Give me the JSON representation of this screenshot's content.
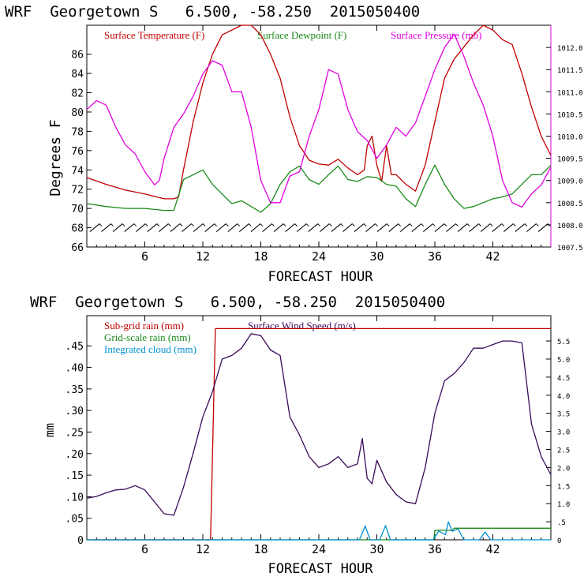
{
  "colors": {
    "temperature": "#c00000",
    "dewpoint": "#1a8a1a",
    "pressure": "#e000e0",
    "subgrid": "#c00000",
    "gridscale": "#1a8a1a",
    "cloud": "#0090d0",
    "wind": "#3a0a5a",
    "barbs": "#000000",
    "frame": "#000000"
  },
  "chart_data": [
    {
      "type": "line",
      "title": "WRF  Georgetown S   6.500, -58.250  2015050400",
      "xlabel": "FORECAST HOUR",
      "ylabel": "Degrees F",
      "xlim": [
        0,
        48
      ],
      "ylim": [
        66,
        89
      ],
      "y2lim": [
        1007.5,
        1012.5
      ],
      "x_ticks": [
        "6",
        "12",
        "18",
        "24",
        "30",
        "36",
        "42"
      ],
      "y_ticks": [
        "66",
        "68",
        "70",
        "72",
        "74",
        "76",
        "78",
        "80",
        "82",
        "84",
        "86"
      ],
      "y2_ticks": [
        "1007.5",
        "1008.0",
        "1008.5",
        "1009.0",
        "1009.5",
        "1010.0",
        "1010.5",
        "1011.0",
        "1011.5",
        "1012.0"
      ],
      "legend": [
        "Surface Temperature (F)",
        "Surface Dewpoint (F)",
        "Surface Pressure (mb)"
      ],
      "series": [
        {
          "name": "Surface Temperature (F)",
          "axis": "left",
          "x": [
            0,
            2,
            4,
            6,
            8,
            9,
            9.5,
            10,
            11,
            12,
            13,
            14,
            16,
            17,
            18,
            19,
            20,
            21,
            22,
            23,
            24,
            25,
            26,
            27,
            28,
            28.7,
            29,
            29.5,
            30,
            30.5,
            31,
            31.5,
            32,
            33,
            34,
            35,
            36,
            37,
            38,
            40,
            41,
            42,
            43,
            44,
            45,
            46,
            47,
            48
          ],
          "y": [
            73.2,
            72.5,
            71.9,
            71.5,
            71.0,
            71.0,
            71.2,
            74.0,
            79.0,
            83.0,
            86.0,
            88.0,
            89.0,
            89.0,
            88.0,
            86.0,
            83.5,
            79.5,
            76.5,
            75.0,
            74.6,
            74.5,
            75.1,
            74.2,
            73.5,
            74.0,
            76.5,
            77.5,
            74.5,
            72.8,
            76.5,
            73.5,
            73.5,
            72.5,
            71.8,
            74.5,
            79.0,
            83.5,
            85.5,
            88.0,
            89.0,
            88.5,
            87.5,
            87.0,
            84.0,
            80.5,
            77.5,
            75.5
          ]
        },
        {
          "name": "Surface Dewpoint (F)",
          "axis": "left",
          "x": [
            0,
            2,
            4,
            6,
            8,
            9,
            10,
            11,
            12,
            13,
            14,
            15,
            16,
            17,
            18,
            19,
            20,
            21,
            22,
            23,
            24,
            25,
            26,
            27,
            28,
            29,
            30,
            31,
            32,
            33,
            34,
            35,
            36,
            37,
            38,
            39,
            40,
            42,
            43,
            44,
            45,
            46,
            47,
            48
          ],
          "y": [
            70.5,
            70.2,
            70.0,
            70.0,
            69.8,
            69.8,
            73.0,
            73.5,
            74.0,
            72.5,
            71.5,
            70.5,
            70.8,
            70.2,
            69.6,
            70.5,
            72.5,
            73.8,
            74.4,
            73.0,
            72.5,
            73.5,
            74.4,
            73.0,
            72.8,
            73.3,
            73.2,
            72.5,
            72.3,
            71.0,
            70.2,
            72.5,
            74.5,
            72.5,
            71.0,
            70.0,
            70.2,
            71.0,
            71.2,
            71.5,
            72.5,
            73.5,
            73.5,
            74.5
          ]
        },
        {
          "name": "Surface Pressure (mb)",
          "axis": "right",
          "x": [
            0,
            1,
            2,
            3,
            4,
            5,
            6,
            7,
            7.5,
            8,
            9,
            10,
            11,
            12,
            13,
            14,
            15,
            16,
            17,
            18,
            19,
            20,
            21,
            22,
            23,
            24,
            25,
            26,
            27,
            28,
            29,
            30,
            31,
            32,
            33,
            34,
            35,
            36,
            37,
            38,
            39,
            40,
            41,
            42,
            43,
            44,
            45,
            46,
            47,
            48
          ],
          "y": [
            1010.6,
            1010.8,
            1010.7,
            1010.2,
            1009.8,
            1009.6,
            1009.2,
            1008.9,
            1009.0,
            1009.5,
            1010.2,
            1010.5,
            1010.9,
            1011.4,
            1011.7,
            1011.6,
            1011.0,
            1011.0,
            1010.2,
            1009.0,
            1008.5,
            1008.5,
            1009.1,
            1009.2,
            1010.0,
            1010.6,
            1011.5,
            1011.4,
            1010.6,
            1010.1,
            1009.9,
            1009.5,
            1009.8,
            1010.2,
            1010.0,
            1010.3,
            1010.9,
            1011.5,
            1012.0,
            1012.3,
            1011.8,
            1011.2,
            1010.7,
            1010.0,
            1009.0,
            1008.5,
            1008.4,
            1008.7,
            1008.9,
            1009.3
          ]
        }
      ],
      "wind_barbs": {
        "row_y": 68.0,
        "direction_deg": 230,
        "count": 40
      }
    },
    {
      "type": "line",
      "title": "WRF  Georgetown S   6.500, -58.250  2015050400",
      "xlabel": "FORECAST HOUR",
      "ylabel": "mm",
      "xlim": [
        0,
        48
      ],
      "ylim": [
        0,
        0.52
      ],
      "y2lim": [
        0,
        6.2
      ],
      "x_ticks": [
        "6",
        "12",
        "18",
        "24",
        "30",
        "36",
        "42"
      ],
      "y_ticks": [
        "0",
        ".05",
        ".10",
        ".15",
        ".20",
        ".25",
        ".30",
        ".35",
        ".40",
        ".45"
      ],
      "y2_ticks": [
        "0",
        ".5",
        "1.0",
        "1.5",
        "2.0",
        "2.5",
        "3.0",
        "3.5",
        "4.0",
        "4.5",
        "5.0",
        "5.5"
      ],
      "legend": [
        "Sub-grid rain (mm)",
        "Grid-scale rain (mm)",
        "Integrated cloud (mm)",
        "Surface Wind Speed (m/s)"
      ],
      "series": [
        {
          "name": "Sub-grid rain (mm)",
          "axis": "left",
          "x": [
            0,
            12.8,
            13.3,
            48
          ],
          "y": [
            0,
            0,
            0.49,
            0.49
          ]
        },
        {
          "name": "Grid-scale rain (mm)",
          "axis": "left",
          "x": [
            0,
            35.9,
            36.0,
            37.8,
            38.0,
            48
          ],
          "y": [
            0,
            0,
            0.022,
            0.022,
            0.027,
            0.027
          ]
        },
        {
          "name": "Integrated cloud (mm)",
          "axis": "left",
          "x": [
            0,
            28.2,
            28.8,
            29.3,
            30.3,
            30.9,
            31.4,
            35.8,
            36.4,
            37.1,
            37.4,
            37.8,
            38.4,
            39.0,
            40.6,
            41.2,
            41.8,
            48
          ],
          "y": [
            0,
            0,
            0.032,
            0,
            0,
            0.033,
            0,
            0,
            0.02,
            0.012,
            0.042,
            0.02,
            0.025,
            0,
            0,
            0.018,
            0,
            0
          ]
        },
        {
          "name": "Surface Wind Speed (m/s)",
          "axis": "right",
          "x": [
            0,
            1,
            2,
            3,
            4,
            5,
            6,
            7,
            8,
            9,
            10,
            11,
            12,
            13,
            14,
            15,
            16,
            17,
            18,
            19,
            20,
            21,
            22,
            23,
            24,
            25,
            26,
            27,
            28,
            28.5,
            29,
            29.5,
            30,
            31,
            32,
            33,
            34,
            35,
            36,
            37,
            38,
            39,
            40,
            41,
            42,
            43,
            44,
            45,
            46,
            47,
            48
          ],
          "y": [
            1.15,
            1.2,
            1.3,
            1.38,
            1.4,
            1.5,
            1.38,
            1.05,
            0.72,
            0.68,
            1.45,
            2.4,
            3.4,
            4.1,
            5.0,
            5.1,
            5.3,
            5.7,
            5.65,
            5.25,
            5.1,
            3.4,
            2.9,
            2.3,
            2.0,
            2.1,
            2.3,
            2.0,
            2.1,
            2.8,
            1.7,
            1.55,
            2.2,
            1.6,
            1.25,
            1.05,
            1.0,
            2.0,
            3.5,
            4.4,
            4.6,
            4.9,
            5.3,
            5.3,
            5.4,
            5.5,
            5.5,
            5.45,
            3.2,
            2.3,
            1.8
          ]
        }
      ]
    }
  ]
}
